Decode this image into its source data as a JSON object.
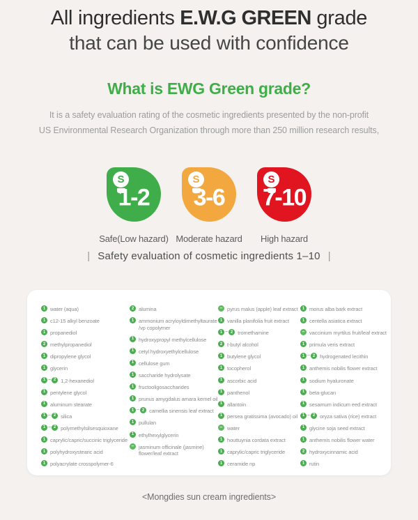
{
  "header": {
    "title_part1": "All ingredients ",
    "title_emphasis": "E.W.G GREEN",
    "title_part2": " grade",
    "subtitle": "that can be used with confidence"
  },
  "section": {
    "heading": "What is EWG Green grade?",
    "intro_line1": "It is a safety evaluation rating of the cosmetic ingredients presented by the non-profit",
    "intro_line2": "US Environmental Research Organization through more than 250 million research results,"
  },
  "grades": [
    {
      "range": "1-2",
      "label": "Safe(Low hazard)",
      "color": "#3fae4a",
      "icon": "S"
    },
    {
      "range": "3-6",
      "label": "Moderate hazard",
      "color": "#f2a83e",
      "icon": "S"
    },
    {
      "range": "7-10",
      "label": "High hazard",
      "color": "#e0151f",
      "icon": "S"
    }
  ],
  "scale": {
    "bar": "|",
    "caption": "Safety evaluation of cosmetic ingredients 1–10"
  },
  "colors": {
    "page_bg": "#f4f1ee",
    "card_bg": "#ffffff",
    "badge_green": "#4aad50",
    "badge_dash_green": "#5fb862",
    "heading_green": "#3fae49"
  },
  "ingredients": {
    "columns": [
      [
        {
          "grade": "1",
          "name": "water (aqua)"
        },
        {
          "grade": "1",
          "name": "c12-15 alkyl benzoate"
        },
        {
          "grade": "1",
          "name": "propanediol"
        },
        {
          "grade": "2",
          "name": "methylpropanediol"
        },
        {
          "grade": "1",
          "name": "dipropylene glycol"
        },
        {
          "grade": "1",
          "name": "glycerin"
        },
        {
          "grade": "1~2",
          "name": "1,2-hexanediol"
        },
        {
          "grade": "1",
          "name": "pentylene glycol"
        },
        {
          "grade": "1",
          "name": "aluminum stearate"
        },
        {
          "grade": "1~2",
          "name": "silica"
        },
        {
          "grade": "1~2",
          "name": "polymethylsilsesquioxane"
        },
        {
          "grade": "1",
          "name": "caprylic/capric/succinic triglyceride"
        },
        {
          "grade": "1",
          "name": "polyhydroxystearic acid"
        },
        {
          "grade": "1",
          "name": "polyacrylate crosspolymer-6"
        }
      ],
      [
        {
          "grade": "2",
          "name": "alumina"
        },
        {
          "grade": "1",
          "name": "ammonium acryloyldimethyltaurate\n/vp copolymer"
        },
        {
          "grade": "1",
          "name": "hydroxypropyl methylcellulose"
        },
        {
          "grade": "1",
          "name": "cetyl hydroxyethylcellulose"
        },
        {
          "grade": "1",
          "name": "cellulose gum"
        },
        {
          "grade": "1",
          "name": "saccharide hydrolysate"
        },
        {
          "grade": "1",
          "name": "fructooligosaccharides"
        },
        {
          "grade": "1",
          "name": "prunus amygdalus amara kernel oil"
        },
        {
          "grade": "1~2",
          "name": "camellia sinensis leaf extract"
        },
        {
          "grade": "1",
          "name": "pullulan"
        },
        {
          "grade": "1",
          "name": "ethylhexylglycerin"
        },
        {
          "grade": "-",
          "name": "jasminum officinale (jasmine)\nflower/leaf extract"
        }
      ],
      [
        {
          "grade": "-",
          "name": "pyrus malus (apple) leaf extract"
        },
        {
          "grade": "1",
          "name": "vanilla planifolia fruit extract"
        },
        {
          "grade": "1~2",
          "name": "tromethamine"
        },
        {
          "grade": "2",
          "name": "t-butyl alcohol"
        },
        {
          "grade": "1",
          "name": "butylene glycol"
        },
        {
          "grade": "1",
          "name": "tocopherol"
        },
        {
          "grade": "1",
          "name": "ascorbic acid"
        },
        {
          "grade": "1",
          "name": "panthenol"
        },
        {
          "grade": "1",
          "name": "allantoin"
        },
        {
          "grade": "1",
          "name": "persea gratissima (avocado) oil"
        },
        {
          "grade": "-",
          "name": "water"
        },
        {
          "grade": "1",
          "name": "houttuynia cordata extract"
        },
        {
          "grade": "1",
          "name": "caprylic/capric triglyceride"
        },
        {
          "grade": "1",
          "name": "ceramide np"
        }
      ],
      [
        {
          "grade": "1",
          "name": "morus alba bark extract"
        },
        {
          "grade": "1",
          "name": "centella asiatica extract"
        },
        {
          "grade": "-",
          "name": "vaccinium myrtilus fruit/leaf extract"
        },
        {
          "grade": "1",
          "name": "primula veris extract"
        },
        {
          "grade": "1~2",
          "name": "hydrogenated lecithin"
        },
        {
          "grade": "1",
          "name": "anthemis nobilis flower extract"
        },
        {
          "grade": "1",
          "name": "sodium hyaluronate"
        },
        {
          "grade": "1",
          "name": "beta-glucan"
        },
        {
          "grade": "1",
          "name": "sesamum indicum eed extract"
        },
        {
          "grade": "1~2",
          "name": "oryza sativa (rice) extract"
        },
        {
          "grade": "1",
          "name": "glycine soja seed extract"
        },
        {
          "grade": "1",
          "name": "anthemis nobilis flower water"
        },
        {
          "grade": "2",
          "name": "hydroxycinnamic acid"
        },
        {
          "grade": "1",
          "name": "rutin"
        }
      ]
    ]
  },
  "footer": {
    "caption": "<Mongdies sun cream ingredients>"
  }
}
